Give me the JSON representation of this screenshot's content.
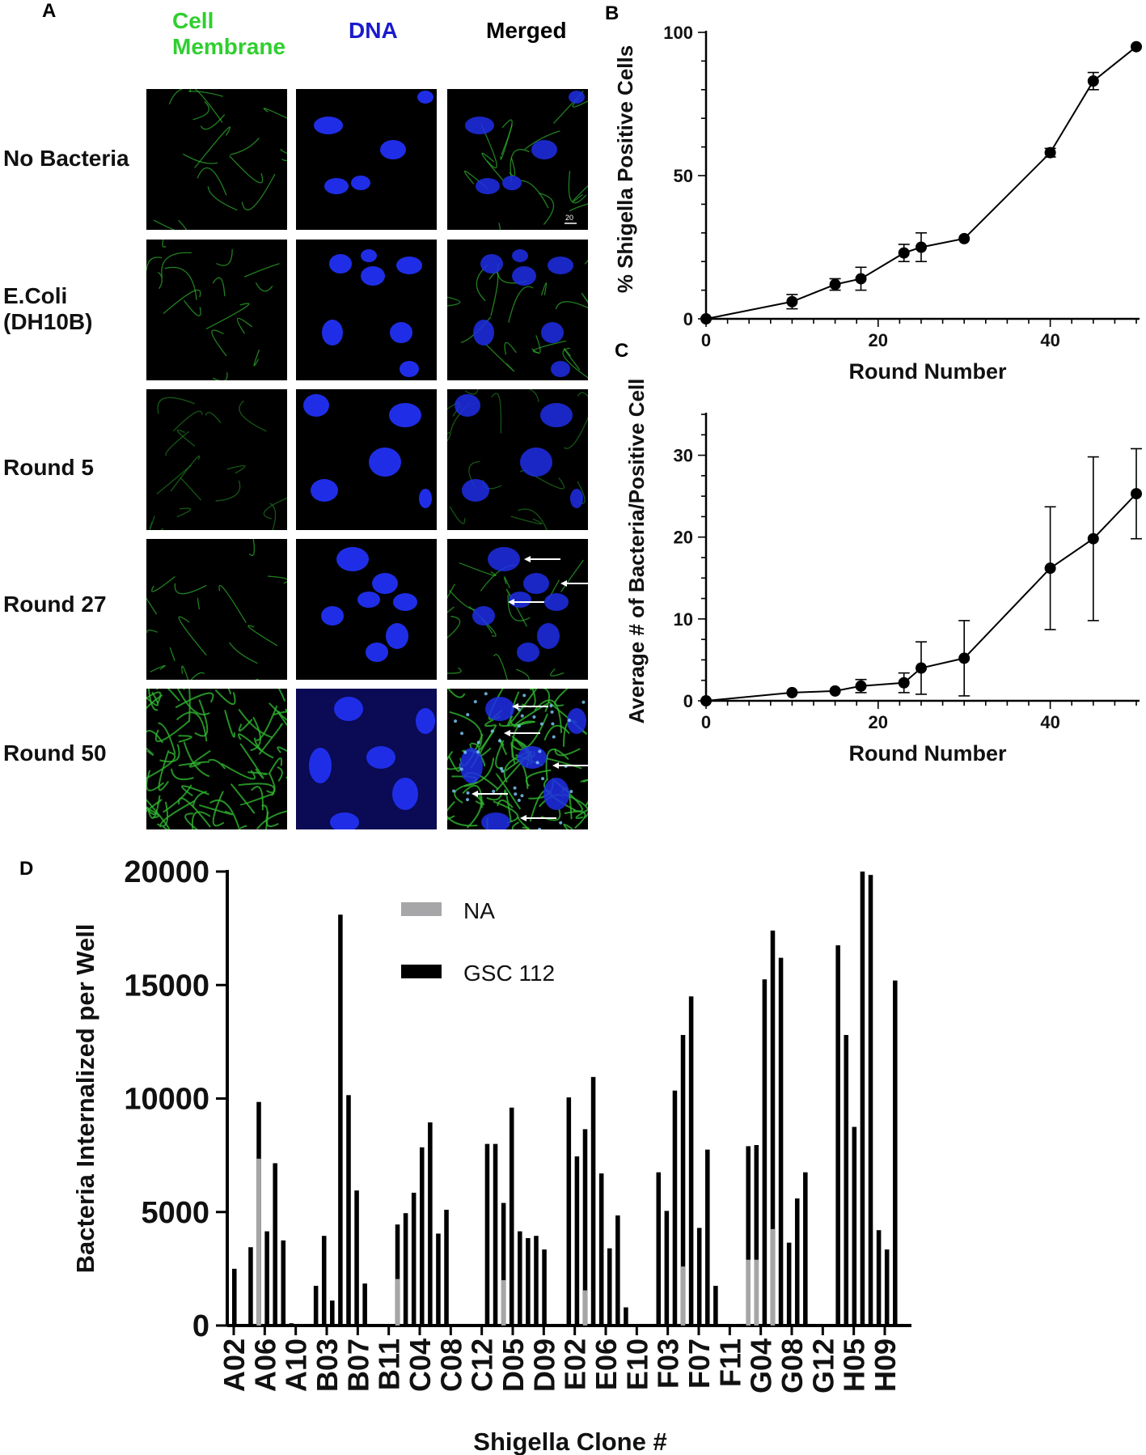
{
  "panels": {
    "A": {
      "letter": "A",
      "columns": [
        "Cell\nMembrane",
        "DNA",
        "Merged"
      ],
      "column_colors": [
        "#2fcf2f",
        "#1a1acd",
        "#000000"
      ],
      "rows": [
        "No Bacteria",
        "E.Coli\n(DH10B)",
        "Round 5",
        "Round 27",
        "Round 50"
      ],
      "scale_bar": "20"
    },
    "B": {
      "letter": "B"
    },
    "C": {
      "letter": "C"
    },
    "D": {
      "letter": "D"
    }
  },
  "chart_data": [
    {
      "panel": "B",
      "type": "line",
      "xlabel": "Round Number",
      "ylabel": "% Shigella Positive Cells",
      "xlim": [
        0,
        50
      ],
      "ylim": [
        0,
        100
      ],
      "xticks": [
        0,
        20,
        40
      ],
      "yticks": [
        0,
        50,
        100
      ],
      "x": [
        0,
        10,
        15,
        18,
        23,
        25,
        30,
        40,
        45,
        50
      ],
      "y": [
        0,
        6,
        12,
        14,
        23,
        25,
        28,
        58,
        83,
        95
      ],
      "err": [
        0,
        2.5,
        2,
        4,
        3,
        5,
        0,
        1.5,
        3,
        0
      ]
    },
    {
      "panel": "C",
      "type": "line",
      "xlabel": "Round Number",
      "ylabel": "Average # of Bacteria/Positive Cell",
      "xlim": [
        0,
        50
      ],
      "ylim": [
        0,
        35
      ],
      "xticks": [
        0,
        20,
        40
      ],
      "yticks": [
        0,
        10,
        20,
        30
      ],
      "x": [
        0,
        10,
        15,
        18,
        23,
        25,
        30,
        40,
        45,
        50
      ],
      "y": [
        0,
        1,
        1.2,
        1.8,
        2.2,
        4,
        5.2,
        16.2,
        19.8,
        25.3
      ],
      "err": [
        0,
        0,
        0,
        0.8,
        1.2,
        3.2,
        4.6,
        7.5,
        10,
        5.5
      ]
    },
    {
      "panel": "D",
      "type": "bar",
      "xlabel": "Shigella Clone #",
      "ylabel": "Bacteria Internalized per Well",
      "ylim": [
        0,
        20000
      ],
      "yticks": [
        0,
        5000,
        10000,
        15000,
        20000
      ],
      "tick_labels": [
        "A02",
        "A06",
        "A10",
        "B03",
        "B07",
        "B11",
        "C04",
        "C08",
        "C12",
        "D05",
        "D09",
        "E02",
        "E06",
        "E10",
        "F03",
        "F07",
        "F11",
        "G04",
        "G08",
        "G12",
        "H05",
        "H09"
      ],
      "legend": [
        {
          "name": "NA",
          "color": "#a6a6a8"
        },
        {
          "name": "GSC 112",
          "color": "#000000"
        }
      ],
      "series": [
        {
          "name": "GSC 112",
          "color": "#000000",
          "values": [
            2500,
            0,
            3450,
            9850,
            4150,
            7150,
            3750,
            100,
            0,
            0,
            1750,
            3950,
            1100,
            18100,
            10150,
            5950,
            1850,
            0,
            0,
            0,
            4450,
            4950,
            5850,
            7850,
            8950,
            4050,
            5100,
            0,
            0,
            0,
            0,
            8000,
            8000,
            5400,
            9600,
            4150,
            3850,
            3950,
            3350,
            0,
            0,
            10050,
            7450,
            8650,
            10950,
            6700,
            3400,
            4850,
            800,
            0,
            0,
            0,
            6750,
            5050,
            10350,
            12800,
            14500,
            4300,
            7750,
            1750,
            0,
            0,
            0,
            7900,
            7950,
            15250,
            17400,
            16200,
            3650,
            5600,
            6750,
            0,
            0,
            0,
            16750,
            12800,
            8750,
            20000,
            19850,
            4200,
            3350,
            15200
          ]
        },
        {
          "name": "NA",
          "color": "#a6a6a8",
          "values": [
            0,
            0,
            0,
            7350,
            0,
            0,
            0,
            0,
            0,
            0,
            0,
            0,
            0,
            0,
            0,
            0,
            0,
            0,
            0,
            0,
            2050,
            0,
            0,
            0,
            0,
            0,
            0,
            0,
            0,
            0,
            0,
            0,
            0,
            2000,
            0,
            0,
            0,
            0,
            0,
            0,
            0,
            0,
            0,
            1550,
            0,
            0,
            0,
            0,
            0,
            0,
            0,
            0,
            0,
            0,
            0,
            2600,
            0,
            0,
            0,
            0,
            0,
            0,
            0,
            2900,
            2900,
            0,
            4250,
            0,
            0,
            0,
            0,
            0,
            0,
            0,
            0,
            0,
            0,
            0,
            0,
            0,
            0,
            0
          ]
        }
      ]
    }
  ]
}
